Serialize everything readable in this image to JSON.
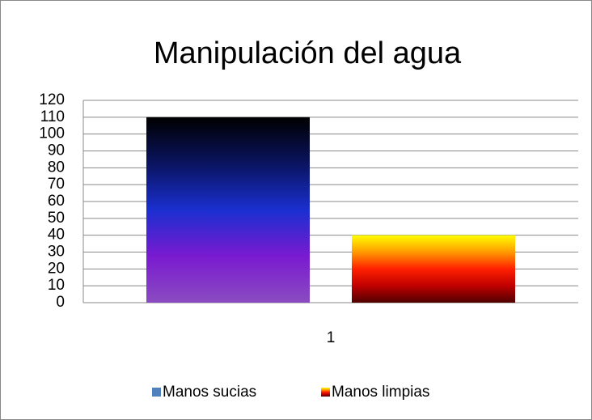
{
  "chart_data": {
    "type": "bar",
    "title": "Manipulación del agua",
    "categories": [
      "1"
    ],
    "series": [
      {
        "name": "Manos sucias",
        "color": "#4f81bd",
        "gradient": [
          "#000000",
          "#0a1460",
          "#1a2fd0",
          "#7a1ad0",
          "#8a4cc0"
        ],
        "values": [
          110
        ]
      },
      {
        "name": "Manos limpias",
        "color": "#ff4000",
        "gradient": [
          "#ffff00",
          "#ff9a00",
          "#ff2000",
          "#c00000",
          "#500000"
        ],
        "values": [
          40
        ]
      }
    ],
    "ylim": [
      0,
      120
    ],
    "yticks": [
      0,
      10,
      20,
      30,
      40,
      50,
      60,
      70,
      80,
      90,
      100,
      110,
      120
    ],
    "grid": true,
    "legend": "bottom"
  }
}
